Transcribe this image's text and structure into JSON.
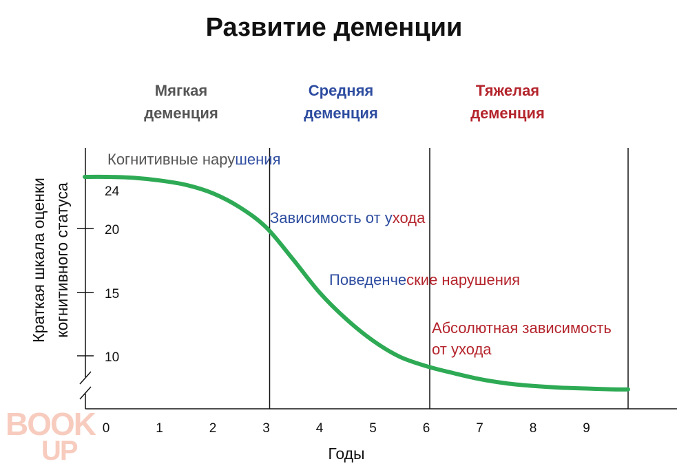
{
  "chart_data": {
    "type": "line",
    "title": "Развитие деменции",
    "xlabel": "Годы",
    "ylabel_line1": "Краткая шкала оценки",
    "ylabel_line2": "когнитивного статуса",
    "x_ticks": [
      "0",
      "1",
      "2",
      "3",
      "4",
      "5",
      "6",
      "7",
      "8",
      "9"
    ],
    "y_ticks": [
      "24",
      "20",
      "15",
      "10"
    ],
    "xlim": [
      -0.4,
      10.4
    ],
    "ylim_note": "axis broken below 10",
    "stage_boundaries": [
      3,
      6,
      10
    ],
    "stages": [
      {
        "line1": "Мягкая",
        "line2": "деменция",
        "color": "#555555"
      },
      {
        "line1": "Средняя",
        "line2": "деменция",
        "color": "#2e4da0"
      },
      {
        "line1": "Тяжелая",
        "line2": "деменция",
        "color": "#b4242c"
      }
    ],
    "annotations": [
      {
        "parts": [
          {
            "text": "Когнитивные нару",
            "color": "#555555"
          },
          {
            "text": "шения",
            "color": "#2e4da0"
          }
        ]
      },
      {
        "parts": [
          {
            "text": "Зависимость от у",
            "color": "#2e4da0"
          },
          {
            "text": "хода",
            "color": "#b4242c"
          }
        ]
      },
      {
        "parts": [
          {
            "text": "Поведенче",
            "color": "#2e4da0"
          },
          {
            "text": "ские нарушения",
            "color": "#b4242c"
          }
        ]
      },
      {
        "parts": [
          {
            "text": "Абсолютная зависимость",
            "color": "#b4242c"
          }
        ]
      },
      {
        "parts": [
          {
            "text": "от ухода",
            "color": "#b4242c"
          }
        ]
      }
    ],
    "series": [
      {
        "color": "#2eaa55",
        "x": [
          -0.4,
          0,
          0.5,
          1,
          1.5,
          2,
          2.5,
          3,
          3.5,
          4,
          4.5,
          5,
          5.5,
          6,
          6.5,
          7,
          7.5,
          8,
          8.5,
          9,
          9.5,
          10
        ],
        "y": [
          25,
          25,
          24.9,
          24.6,
          24.1,
          23.3,
          22.0,
          20.1,
          17.6,
          15.0,
          12.9,
          11.2,
          9.9,
          8.8,
          8.0,
          7.3,
          6.8,
          6.5,
          6.3,
          6.2,
          6.1,
          6.1
        ]
      }
    ]
  },
  "watermark": {
    "line1": "BOOK",
    "line2": "UP"
  }
}
